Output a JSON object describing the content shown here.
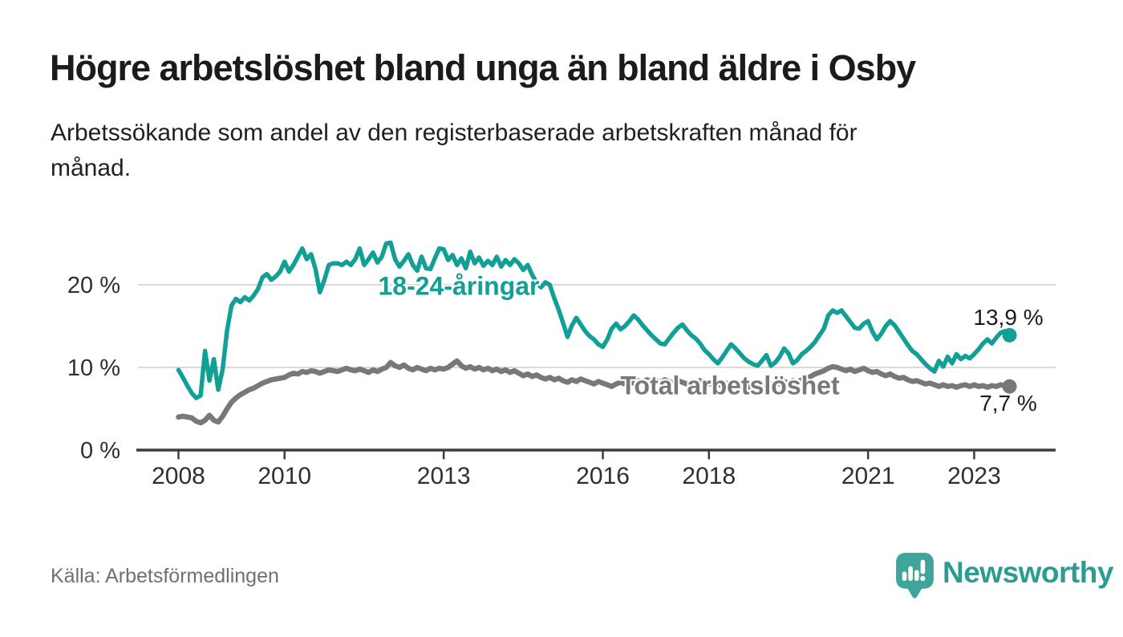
{
  "header": {
    "title": "Högre arbetslöshet bland unga än bland äldre i Osby",
    "subtitle_line1": "Arbetssökande som andel av den registerbaserade arbetskraften månad för",
    "subtitle_line2": "månad."
  },
  "chart_data": {
    "type": "line",
    "title": "Högre arbetslöshet bland unga än bland äldre i Osby",
    "xlabel": "",
    "ylabel": "",
    "x_start": 2008.0,
    "x_step": "monthly",
    "x_end": 2023.667,
    "ylim": [
      0,
      26
    ],
    "grid": "horizontal",
    "legend_position": "inline-labels",
    "yticks": [
      {
        "value": 0,
        "label": "0 %"
      },
      {
        "value": 10,
        "label": "10 %"
      },
      {
        "value": 20,
        "label": "20 %"
      }
    ],
    "xticks": [
      {
        "value": 2008,
        "label": "2008"
      },
      {
        "value": 2010,
        "label": "2010"
      },
      {
        "value": 2013,
        "label": "2013"
      },
      {
        "value": 2016,
        "label": "2016"
      },
      {
        "value": 2018,
        "label": "2018"
      },
      {
        "value": 2021,
        "label": "2021"
      },
      {
        "value": 2023,
        "label": "2023"
      }
    ],
    "series": [
      {
        "name": "18-24-åringar",
        "color": "#12a096",
        "end_label": "13,9 %",
        "end_value": 13.9,
        "values": [
          9.7,
          8.8,
          7.8,
          6.9,
          6.3,
          6.6,
          12,
          8.4,
          11,
          7.3,
          9.8,
          14.5,
          17.5,
          18.3,
          17.9,
          18.5,
          18.1,
          18.7,
          19.5,
          20.9,
          21.3,
          20.6,
          21,
          21.6,
          22.8,
          21.6,
          22.4,
          23.4,
          24.4,
          23.1,
          23.7,
          21.9,
          19.1,
          20.6,
          22.4,
          22.6,
          22.6,
          22.4,
          22.8,
          22.4,
          23.1,
          24.4,
          22.4,
          23.1,
          23.9,
          22.7,
          23.4,
          25,
          25.1,
          23.1,
          22.2,
          22.9,
          23.7,
          22.4,
          21.7,
          23.4,
          22,
          21.9,
          23.2,
          24.4,
          24.3,
          23,
          23.6,
          22.4,
          23.2,
          22,
          24,
          22.6,
          23.3,
          22.3,
          22.9,
          22.4,
          23.4,
          22.2,
          23,
          22.4,
          23.1,
          22.6,
          21.8,
          22.4,
          21.2,
          20.3,
          19.7,
          20.3,
          20,
          18.4,
          17,
          15.4,
          13.7,
          15.1,
          16,
          15.2,
          14.4,
          13.8,
          13.4,
          12.8,
          12.5,
          13.4,
          14.7,
          15.3,
          14.6,
          15,
          15.6,
          16.3,
          15.8,
          15.1,
          14.5,
          13.9,
          13.4,
          12.9,
          12.8,
          13.5,
          14.2,
          14.8,
          15.2,
          14.5,
          13.9,
          13.5,
          12.9,
          12.1,
          11.6,
          11,
          10.5,
          11.2,
          12,
          12.8,
          12.3,
          11.7,
          11.1,
          10.7,
          10.4,
          10.2,
          10.8,
          11.5,
          10.2,
          10.6,
          11.3,
          12.3,
          11.7,
          10.5,
          10.9,
          11.6,
          12,
          12.5,
          13.1,
          13.9,
          14.7,
          16.3,
          16.9,
          16.6,
          16.9,
          16.2,
          15.5,
          14.8,
          14.7,
          15.3,
          15.6,
          14.3,
          13.4,
          14.1,
          15,
          15.6,
          15.1,
          14.3,
          13.5,
          12.7,
          12,
          11.6,
          11,
          10.4,
          9.9,
          9.5,
          10.8,
          10.1,
          11.3,
          10.5,
          11.6,
          11,
          11.4,
          11.1,
          11.6,
          12.2,
          12.9,
          13.4,
          12.9,
          13.6,
          14.2,
          14.4,
          13.9
        ]
      },
      {
        "name": "Total arbetslöshet",
        "color": "#77777c",
        "end_label": "7,7 %",
        "end_value": 7.7,
        "values": [
          4,
          4.1,
          4,
          3.9,
          3.5,
          3.3,
          3.6,
          4.2,
          3.6,
          3.4,
          4.1,
          5,
          5.8,
          6.3,
          6.7,
          7,
          7.3,
          7.5,
          7.8,
          8.1,
          8.3,
          8.5,
          8.6,
          8.7,
          8.8,
          9.1,
          9.3,
          9.2,
          9.5,
          9.4,
          9.6,
          9.5,
          9.3,
          9.5,
          9.7,
          9.6,
          9.5,
          9.7,
          9.9,
          9.7,
          9.6,
          9.8,
          9.6,
          9.4,
          9.7,
          9.5,
          9.8,
          10,
          10.6,
          10.2,
          10,
          10.3,
          9.9,
          9.7,
          10,
          9.8,
          9.6,
          9.9,
          9.7,
          9.9,
          9.8,
          10,
          10.4,
          10.8,
          10.2,
          9.9,
          10.1,
          9.8,
          10,
          9.7,
          9.9,
          9.6,
          9.8,
          9.5,
          9.7,
          9.4,
          9.6,
          9.3,
          9,
          9.2,
          8.9,
          9.1,
          8.8,
          8.6,
          8.8,
          8.5,
          8.7,
          8.4,
          8.2,
          8.5,
          8.3,
          8.6,
          8.4,
          8.2,
          8,
          8.3,
          8.1,
          7.9,
          7.7,
          8,
          8.2,
          8,
          8.3,
          8.1,
          8.4,
          8.2,
          8.5,
          8.3,
          8.4,
          8.2,
          8.5,
          8.3,
          8.1,
          8.4,
          8.2,
          8,
          8.3,
          8.1,
          8.4,
          8.2,
          8,
          8.2,
          8,
          7.8,
          8.1,
          7.9,
          7.7,
          8,
          7.8,
          7.6,
          7.9,
          7.7,
          7.9,
          8.1,
          7.9,
          8.2,
          8,
          8.3,
          8.1,
          8.4,
          8.2,
          8.5,
          8.7,
          8.9,
          9.2,
          9.4,
          9.6,
          9.9,
          10.1,
          10,
          9.8,
          9.6,
          9.8,
          9.5,
          9.7,
          9.9,
          9.6,
          9.4,
          9.5,
          9.2,
          9,
          9.2,
          8.9,
          8.7,
          8.8,
          8.5,
          8.3,
          8.4,
          8.2,
          8,
          8.1,
          7.9,
          7.7,
          7.9,
          7.7,
          7.8,
          7.6,
          7.8,
          7.9,
          7.7,
          7.9,
          7.7,
          7.8,
          7.6,
          7.8,
          7.7,
          7.9,
          7.8,
          7.7
        ]
      }
    ]
  },
  "footer": {
    "source": "Källa: Arbetsförmedlingen",
    "brand": "Newsworthy",
    "brand_color": "#2b9c92"
  }
}
